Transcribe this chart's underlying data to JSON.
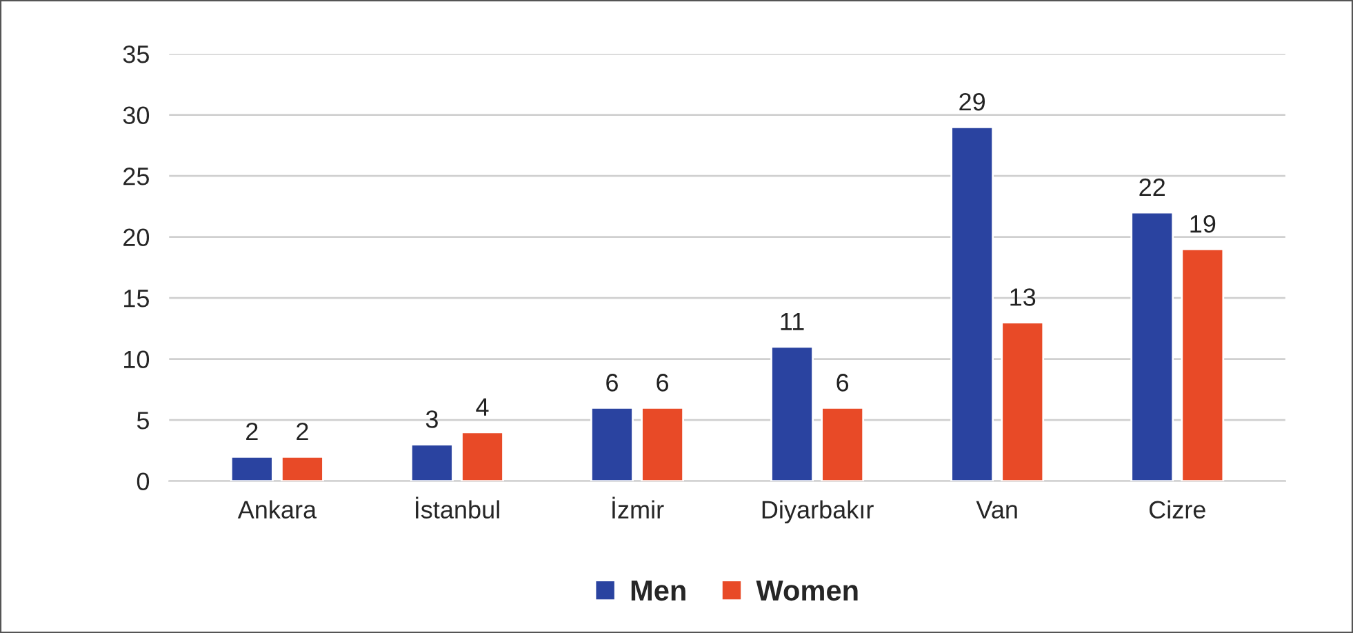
{
  "chart_data": {
    "type": "bar",
    "categories": [
      "Ankara",
      "İstanbul",
      "İzmir",
      "Diyarbakır",
      "Van",
      "Cizre"
    ],
    "series": [
      {
        "name": "Men",
        "color": "#2a43a0",
        "values": [
          2,
          3,
          6,
          11,
          29,
          22
        ]
      },
      {
        "name": "Women",
        "color": "#e84a27",
        "values": [
          2,
          4,
          6,
          6,
          13,
          19
        ]
      }
    ],
    "ylim": [
      0,
      35
    ],
    "yticks": [
      0,
      5,
      10,
      15,
      20,
      25,
      30,
      35
    ],
    "grid": "y",
    "legend": "bottom",
    "data_labels": true
  }
}
